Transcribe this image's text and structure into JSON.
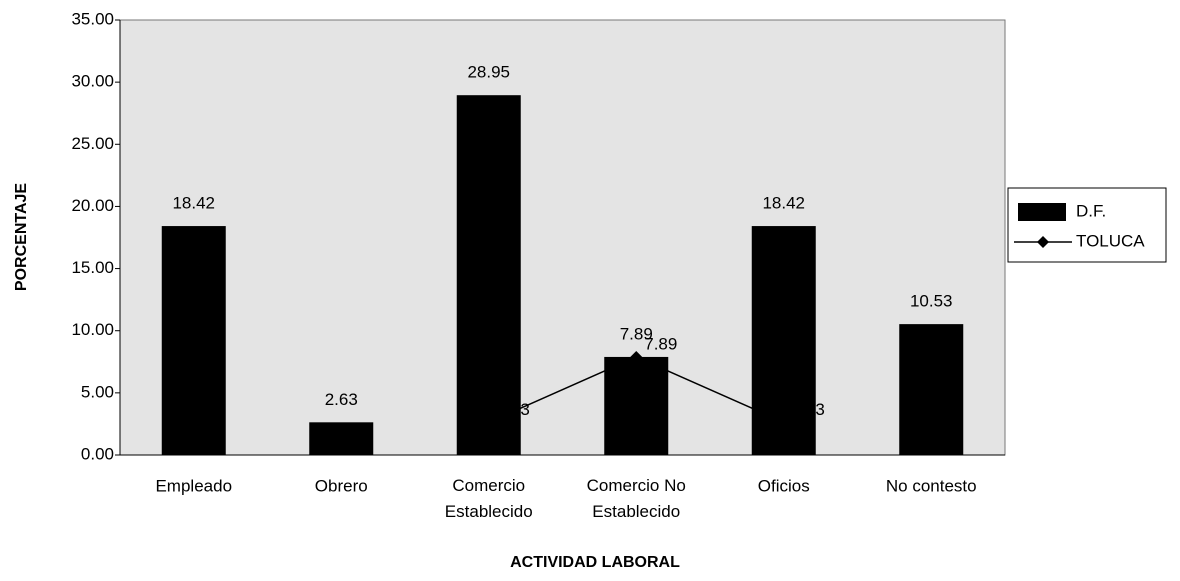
{
  "chart_data": {
    "type": "bar_line",
    "x_label": "ACTIVIDAD LABORAL",
    "y_label": "PORCENTAJE",
    "categories": [
      "Empleado",
      "Obrero",
      "Comercio Establecido",
      "Comercio No Establecido",
      "Oficios",
      "No contesto"
    ],
    "series": [
      {
        "name": "D.F.",
        "type": "bar",
        "color": "#000000",
        "values": [
          18.42,
          2.63,
          28.95,
          7.89,
          18.42,
          10.53
        ]
      },
      {
        "name": "TOLUCA",
        "type": "line",
        "color": "#000000",
        "values": [
          null,
          null,
          2.63,
          7.89,
          2.63,
          null
        ]
      }
    ],
    "ylim": [
      0,
      35
    ],
    "yticks": [
      {
        "value": 0,
        "label": "0.00"
      },
      {
        "value": 5,
        "label": "5.00"
      },
      {
        "value": 10,
        "label": "10.00"
      },
      {
        "value": 15,
        "label": "15.00"
      },
      {
        "value": 20,
        "label": "20.00"
      },
      {
        "value": 25,
        "label": "25.00"
      },
      {
        "value": 30,
        "label": "30.00"
      },
      {
        "value": 35,
        "label": "35.00"
      }
    ],
    "legend": "right"
  }
}
